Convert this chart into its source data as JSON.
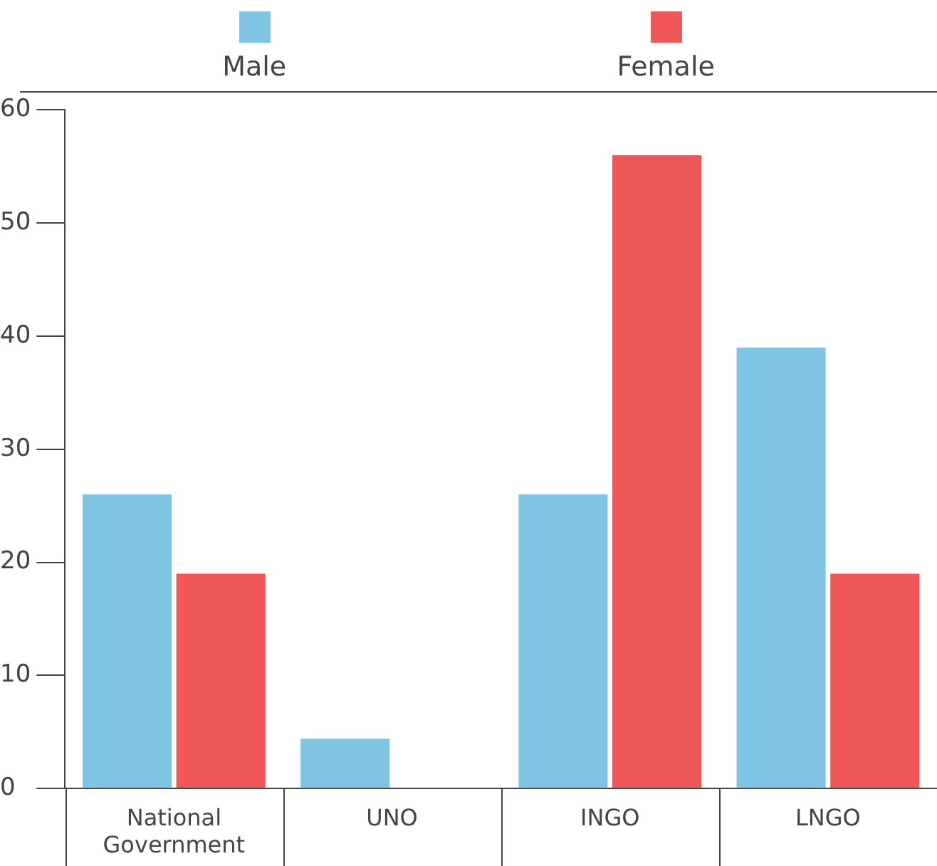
{
  "chart_data": {
    "type": "bar",
    "categories": [
      "National Government",
      "UNO",
      "INGO",
      "LNGO"
    ],
    "series": [
      {
        "name": "Male",
        "color": "#7fc4e2",
        "values": [
          26,
          4.4,
          26,
          39
        ]
      },
      {
        "name": "Female",
        "color": "#ef5759",
        "values": [
          19,
          null,
          56,
          19
        ]
      }
    ],
    "ylim": [
      0,
      60
    ],
    "yticks": [
      0,
      10,
      20,
      30,
      40,
      50,
      60
    ],
    "grid": false,
    "legend": "top"
  }
}
